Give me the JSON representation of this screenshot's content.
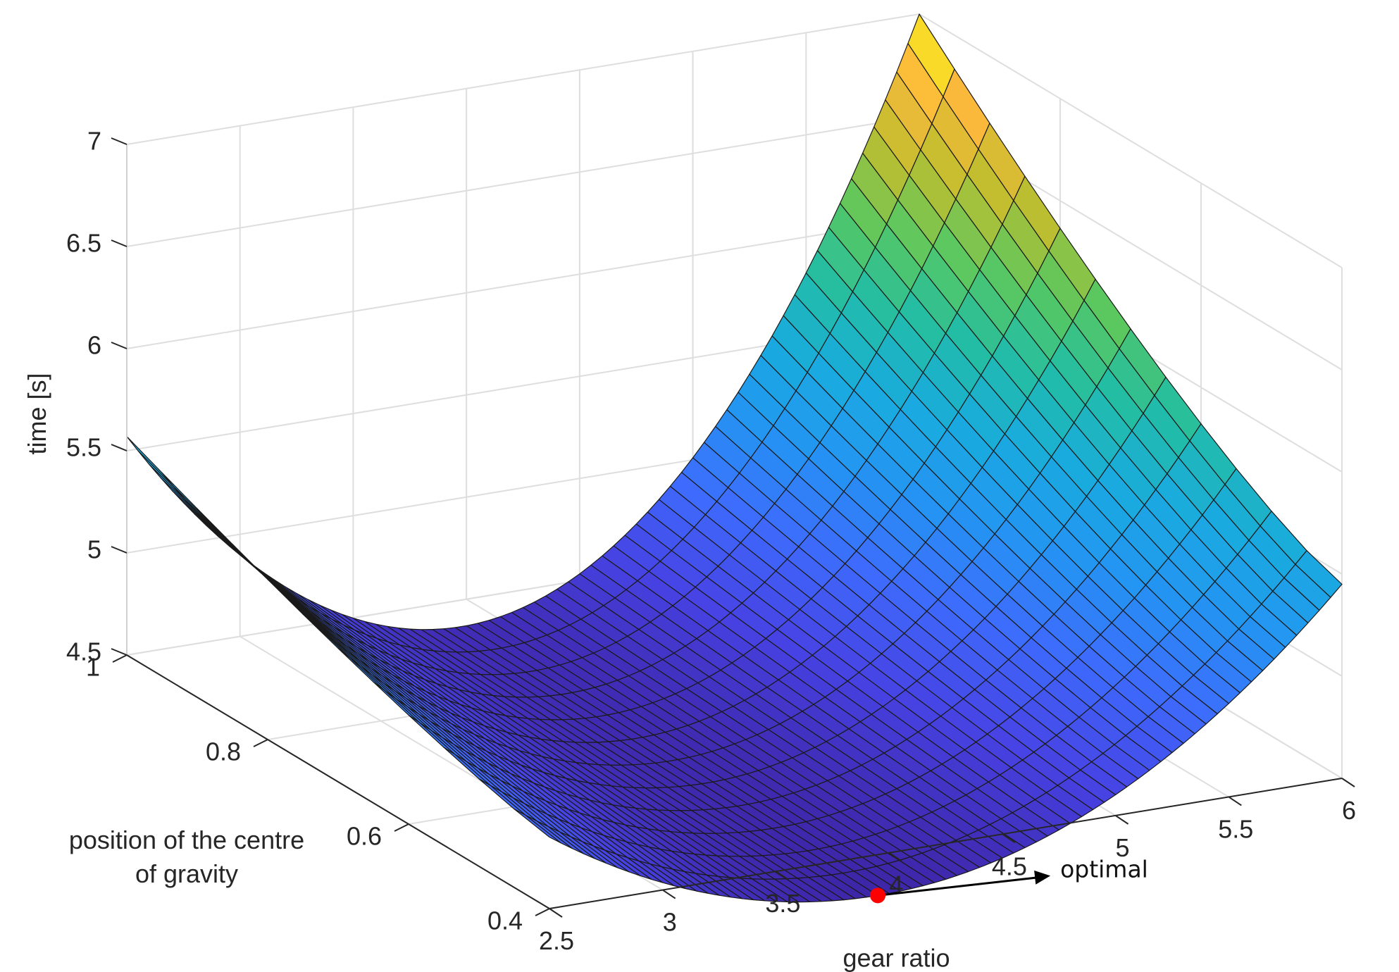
{
  "chart_data": {
    "type": "surface",
    "title": "",
    "xlabel": "gear ratio",
    "ylabel_lines": [
      "position of the centre",
      "of gravity"
    ],
    "zlabel": "time [s]",
    "xlim": [
      2.5,
      6
    ],
    "ylim": [
      0.4,
      1
    ],
    "zlim": [
      4.5,
      7
    ],
    "x_ticks": [
      "2.5",
      "3",
      "3.5",
      "4",
      "4.5",
      "5",
      "5.5",
      "6"
    ],
    "y_ticks": [
      "0.4",
      "0.6",
      "0.8",
      "1"
    ],
    "z_ticks": [
      "4.5",
      "5",
      "5.5",
      "6",
      "6.5",
      "7"
    ],
    "grid": true,
    "colormap": "parula",
    "colormap_stops": [
      "#3e26a8",
      "#4742e3",
      "#3e6bfd",
      "#2494f3",
      "#19abdf",
      "#22bda6",
      "#59c860",
      "#bebe2e",
      "#fcb93b",
      "#f9fb15"
    ],
    "surface_model": {
      "minimum_time": 4.3,
      "optimal_gear_ratio": 3.95,
      "description_points": [
        {
          "gear_ratio": 2.5,
          "cog": 1.0,
          "time": 5.45
        },
        {
          "gear_ratio": 2.5,
          "cog": 0.4,
          "time": 4.85
        },
        {
          "gear_ratio": 6.0,
          "cog": 1.0,
          "time": 7.0
        },
        {
          "gear_ratio": 6.0,
          "cog": 0.4,
          "time": 5.45
        }
      ]
    },
    "optimal_point": {
      "gear_ratio": 3.95,
      "cog": 0.4,
      "time": 4.3,
      "color": "#ff0000"
    },
    "annotations": [
      {
        "text": "optimal"
      }
    ]
  }
}
